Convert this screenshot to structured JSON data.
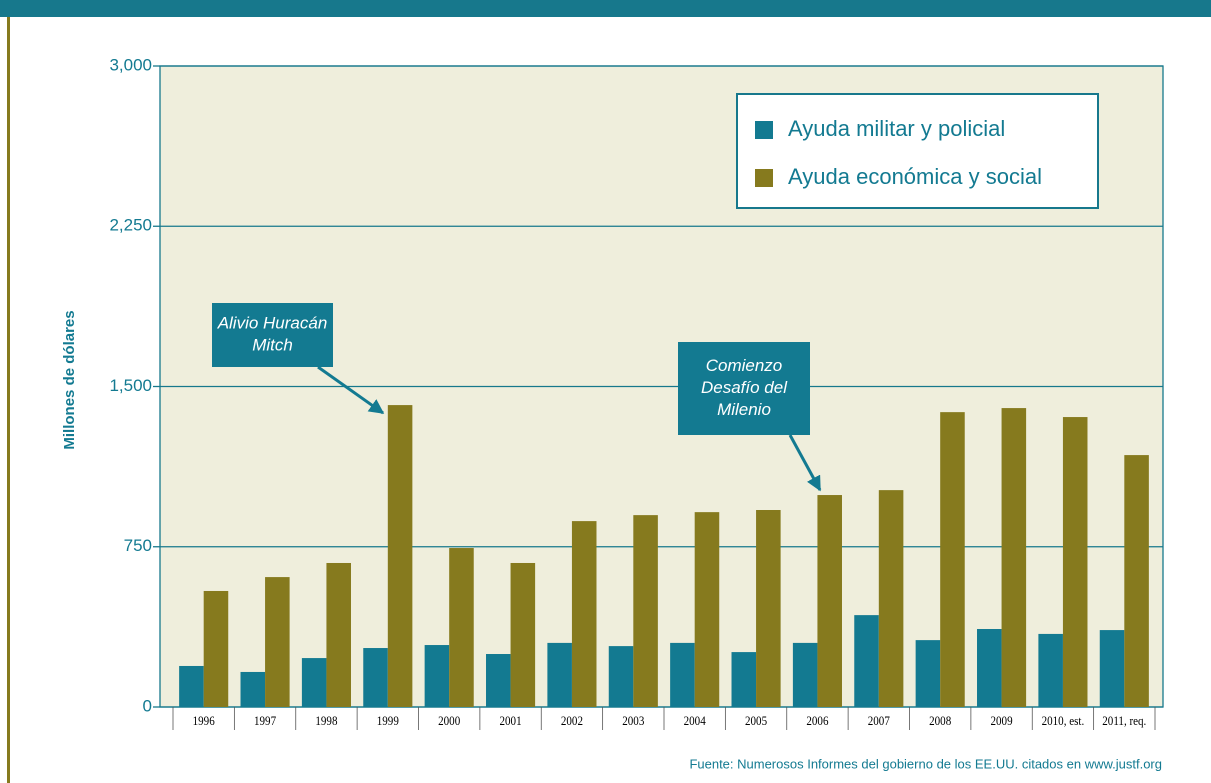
{
  "chart_data": {
    "type": "bar",
    "y_label": "Millones de dólares",
    "categories": [
      "1996",
      "1997",
      "1998",
      "1999",
      "2000",
      "2001",
      "2002",
      "2003",
      "2004",
      "2005",
      "2006",
      "2007",
      "2008",
      "2009",
      "2010, est.",
      "2011, req."
    ],
    "series": [
      {
        "name": "Ayuda militar y policial",
        "color": "#137a91",
        "values": [
          192,
          164,
          229,
          276,
          290,
          248,
          300,
          285,
          300,
          257,
          300,
          430,
          313,
          365,
          342,
          360
        ]
      },
      {
        "name": "Ayuda económica y social",
        "color": "#867a1e",
        "values": [
          543,
          608,
          674,
          1413,
          744,
          674,
          870,
          898,
          912,
          922,
          992,
          1015,
          1380,
          1399,
          1357,
          1179
        ]
      }
    ],
    "ylim": [
      0,
      3000
    ],
    "yticks": [
      0,
      750,
      {
        "value": 1500,
        "label": "1,500"
      },
      {
        "value": 2250,
        "label": "2,250"
      },
      {
        "value": 3000,
        "label": "3,000"
      }
    ],
    "grid": true,
    "legend": "top-right",
    "annotations": [
      {
        "lines": [
          "Alivio Huracán",
          "Mitch"
        ]
      },
      {
        "lines": [
          "Comienzo",
          "Desafío del",
          "Milenio"
        ]
      }
    ],
    "source": "Fuente: Numerosos Informes del gobierno de los EE.UU. citados en www.justf.org"
  }
}
